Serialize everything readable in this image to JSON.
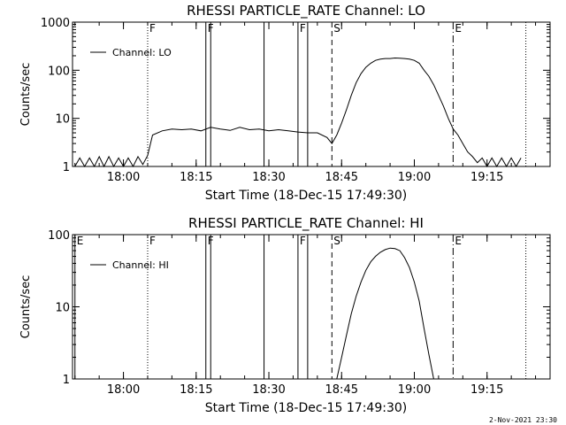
{
  "footer_date": "2-Nov-2021 23:30",
  "marker_labels": {
    "F": "F",
    "S": "S",
    "E": "E"
  },
  "chart_data": [
    {
      "type": "line",
      "title": "RHESSI PARTICLE_RATE Channel: LO",
      "xlabel": "Start Time (18-Dec-15 17:49:30)",
      "ylabel": "Counts/sec",
      "yscale": "log",
      "ylim": [
        1,
        1000
      ],
      "xlim_minutes": [
        17.85,
        18.5,
        19.4,
        19.45
      ],
      "xticks": [
        "18:00",
        "18:15",
        "18:30",
        "18:45",
        "19:00",
        "19:15"
      ],
      "yticks": [
        "1",
        "10",
        "100",
        "1000"
      ],
      "legend": {
        "position": "top-left",
        "entries": [
          "Channel: LO"
        ]
      },
      "grid": false,
      "markers": [
        {
          "time": "18:05:00",
          "style": "dotted",
          "label": "F"
        },
        {
          "time": "18:17:00",
          "style": "solid",
          "label": "F"
        },
        {
          "time": "18:18:00",
          "style": "solid",
          "label": ""
        },
        {
          "time": "18:29:00",
          "style": "solid",
          "label": ""
        },
        {
          "time": "18:36:00",
          "style": "solid",
          "label": "F"
        },
        {
          "time": "18:38:00",
          "style": "solid",
          "label": ""
        },
        {
          "time": "18:43:00",
          "style": "dashed",
          "label": "S"
        },
        {
          "time": "19:08:00",
          "style": "dashdot",
          "label": "E"
        },
        {
          "time": "19:23:00",
          "style": "dotted",
          "label": ""
        }
      ],
      "series": [
        {
          "name": "Channel: LO",
          "x": [
            "17:50",
            "17:51",
            "17:52",
            "17:53",
            "17:54",
            "17:55",
            "17:56",
            "17:57",
            "17:58",
            "17:59",
            "18:00",
            "18:01",
            "18:02",
            "18:03",
            "18:04",
            "18:05",
            "18:06",
            "18:08",
            "18:10",
            "18:12",
            "18:14",
            "18:16",
            "18:18",
            "18:20",
            "18:22",
            "18:24",
            "18:26",
            "18:28",
            "18:30",
            "18:32",
            "18:34",
            "18:36",
            "18:38",
            "18:40",
            "18:42",
            "18:43",
            "18:44",
            "18:45",
            "18:46",
            "18:47",
            "18:48",
            "18:49",
            "18:50",
            "18:51",
            "18:52",
            "18:53",
            "18:54",
            "18:55",
            "18:56",
            "18:57",
            "18:58",
            "18:59",
            "19:00",
            "19:01",
            "19:02",
            "19:03",
            "19:04",
            "19:05",
            "19:06",
            "19:07",
            "19:08",
            "19:09",
            "19:10",
            "19:11",
            "19:12",
            "19:13",
            "19:14",
            "19:15",
            "19:16",
            "19:17",
            "19:18",
            "19:19",
            "19:20",
            "19:21",
            "19:22"
          ],
          "values": [
            1,
            1.5,
            1,
            1.5,
            1,
            1.6,
            1,
            1.6,
            1,
            1.5,
            1,
            1.5,
            1,
            1.6,
            1.1,
            1.7,
            4.5,
            5.5,
            6,
            5.8,
            6,
            5.5,
            6.5,
            6,
            5.6,
            6.5,
            5.8,
            6,
            5.5,
            5.8,
            5.5,
            5.2,
            5,
            5,
            4,
            3,
            4.5,
            8,
            15,
            30,
            55,
            85,
            115,
            140,
            160,
            170,
            175,
            175,
            180,
            178,
            175,
            170,
            160,
            140,
            100,
            75,
            50,
            30,
            18,
            10,
            6,
            4.5,
            3,
            2,
            1.6,
            1.2,
            1.5,
            1,
            1.5,
            1,
            1.5,
            1,
            1.5,
            1,
            1.5
          ]
        }
      ]
    },
    {
      "type": "line",
      "title": "RHESSI PARTICLE_RATE Channel: HI",
      "xlabel": "Start Time (18-Dec-15 17:49:30)",
      "ylabel": "Counts/sec",
      "yscale": "log",
      "ylim": [
        1,
        100
      ],
      "xticks": [
        "18:00",
        "18:15",
        "18:30",
        "18:45",
        "19:00",
        "19:15"
      ],
      "yticks": [
        "1",
        "10",
        "100"
      ],
      "legend": {
        "position": "top-left",
        "entries": [
          "Channel: HI"
        ]
      },
      "grid": false,
      "markers": [
        {
          "time": "17:50:00",
          "style": "solid",
          "label": "E"
        },
        {
          "time": "18:05:00",
          "style": "dotted",
          "label": "F"
        },
        {
          "time": "18:17:00",
          "style": "solid",
          "label": "F"
        },
        {
          "time": "18:18:00",
          "style": "solid",
          "label": ""
        },
        {
          "time": "18:29:00",
          "style": "solid",
          "label": ""
        },
        {
          "time": "18:36:00",
          "style": "solid",
          "label": "F"
        },
        {
          "time": "18:38:00",
          "style": "solid",
          "label": ""
        },
        {
          "time": "18:43:00",
          "style": "dashed",
          "label": "S"
        },
        {
          "time": "19:08:00",
          "style": "dashdot",
          "label": "E"
        },
        {
          "time": "19:23:00",
          "style": "dotted",
          "label": ""
        }
      ],
      "series": [
        {
          "name": "Channel: HI",
          "x": [
            "18:44",
            "18:45",
            "18:46",
            "18:47",
            "18:48",
            "18:49",
            "18:50",
            "18:51",
            "18:52",
            "18:53",
            "18:54",
            "18:55",
            "18:56",
            "18:57",
            "18:58",
            "18:59",
            "19:00",
            "19:01",
            "19:02",
            "19:03",
            "19:04"
          ],
          "values": [
            1,
            2,
            4,
            8,
            14,
            22,
            32,
            42,
            50,
            57,
            62,
            65,
            64,
            60,
            48,
            35,
            22,
            12,
            5,
            2.2,
            1
          ]
        }
      ]
    }
  ]
}
